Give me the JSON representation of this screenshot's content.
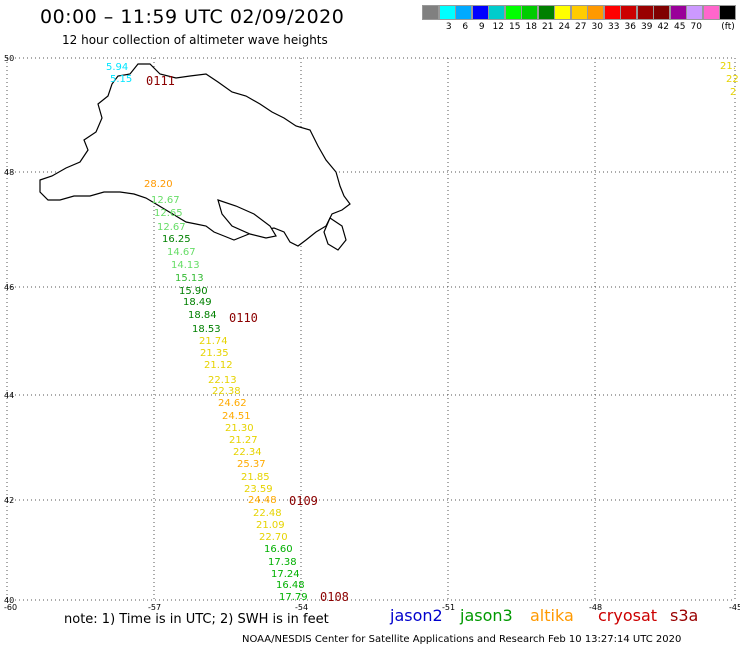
{
  "title": "00:00 – 11:59 UTC 02/09/2020",
  "subtitle": "12 hour collection of altimeter wave heights",
  "legend": {
    "unit": "(ft)",
    "colors": [
      "#808080",
      "#00ffff",
      "#00aaff",
      "#0000ff",
      "#00cccc",
      "#00ff00",
      "#00cc00",
      "#008000",
      "#ffff00",
      "#ffcc00",
      "#ff9900",
      "#ff0000",
      "#cc0000",
      "#990000",
      "#800000",
      "#990099",
      "#cc99ff",
      "#ff66cc",
      "#000000"
    ],
    "labels": [
      "3",
      "6",
      "9",
      "12",
      "15",
      "18",
      "21",
      "24",
      "27",
      "30",
      "33",
      "36",
      "39",
      "42",
      "45",
      "70"
    ]
  },
  "axes": {
    "lat_labels": [
      "50",
      "48",
      "46",
      "44",
      "42",
      "40"
    ],
    "lon_labels": [
      "-60",
      "-57",
      "-54",
      "-51",
      "-48",
      "-45"
    ]
  },
  "passes": [
    {
      "label": "0111",
      "color": "#8b0000"
    },
    {
      "label": "0110",
      "color": "#8b0000"
    },
    {
      "label": "0109",
      "color": "#8b0000"
    },
    {
      "label": "0108",
      "color": "#8b0000"
    }
  ],
  "observations": [
    {
      "v": "5.94",
      "color": "#00e5ff"
    },
    {
      "v": "5.15",
      "color": "#00e5ff"
    },
    {
      "v": "28.20",
      "color": "#ff9900"
    },
    {
      "v": "12.67",
      "color": "#66dd66"
    },
    {
      "v": "12.65",
      "color": "#66dd66"
    },
    {
      "v": "12.67",
      "color": "#66dd66"
    },
    {
      "v": "16.25",
      "color": "#008000"
    },
    {
      "v": "14.67",
      "color": "#66dd66"
    },
    {
      "v": "14.13",
      "color": "#66dd66"
    },
    {
      "v": "15.13",
      "color": "#33bb33"
    },
    {
      "v": "15.90",
      "color": "#008000"
    },
    {
      "v": "18.49",
      "color": "#008000"
    },
    {
      "v": "18.84",
      "color": "#008000"
    },
    {
      "v": "18.53",
      "color": "#008000"
    },
    {
      "v": "21.74",
      "color": "#e6d300"
    },
    {
      "v": "21.35",
      "color": "#e6d300"
    },
    {
      "v": "21.12",
      "color": "#e6d300"
    },
    {
      "v": "22.13",
      "color": "#e6d300"
    },
    {
      "v": "22.38",
      "color": "#e6d300"
    },
    {
      "v": "24.62",
      "color": "#ffaa00"
    },
    {
      "v": "24.51",
      "color": "#ffaa00"
    },
    {
      "v": "21.30",
      "color": "#e6d300"
    },
    {
      "v": "21.27",
      "color": "#e6d300"
    },
    {
      "v": "22.34",
      "color": "#e6d300"
    },
    {
      "v": "25.37",
      "color": "#ffaa00"
    },
    {
      "v": "21.85",
      "color": "#e6d300"
    },
    {
      "v": "23.59",
      "color": "#e6d300"
    },
    {
      "v": "24.48",
      "color": "#ffaa00"
    },
    {
      "v": "22.48",
      "color": "#e6d300"
    },
    {
      "v": "21.09",
      "color": "#e6d300"
    },
    {
      "v": "22.70",
      "color": "#e6d300"
    },
    {
      "v": "16.60",
      "color": "#00b000"
    },
    {
      "v": "17.38",
      "color": "#00b000"
    },
    {
      "v": "17.24",
      "color": "#00b000"
    },
    {
      "v": "16.48",
      "color": "#00b000"
    },
    {
      "v": "17.79",
      "color": "#00b000"
    },
    {
      "v": "21.",
      "color": "#e6d300"
    },
    {
      "v": "22",
      "color": "#e6d300"
    },
    {
      "v": "2",
      "color": "#e6d300"
    }
  ],
  "note": "note: 1) Time is in UTC; 2) SWH is in feet",
  "satellites": [
    {
      "name": "jason2",
      "color": "#0000cc"
    },
    {
      "name": "jason3",
      "color": "#009900"
    },
    {
      "name": "altika",
      "color": "#ff9900"
    },
    {
      "name": "cryosat",
      "color": "#cc0000"
    },
    {
      "name": "s3a",
      "color": "#990000"
    }
  ],
  "footer": "NOAA/NESDIS Center for Satellite Applications and Research   Feb 10 13:27:14 UTC 2020"
}
